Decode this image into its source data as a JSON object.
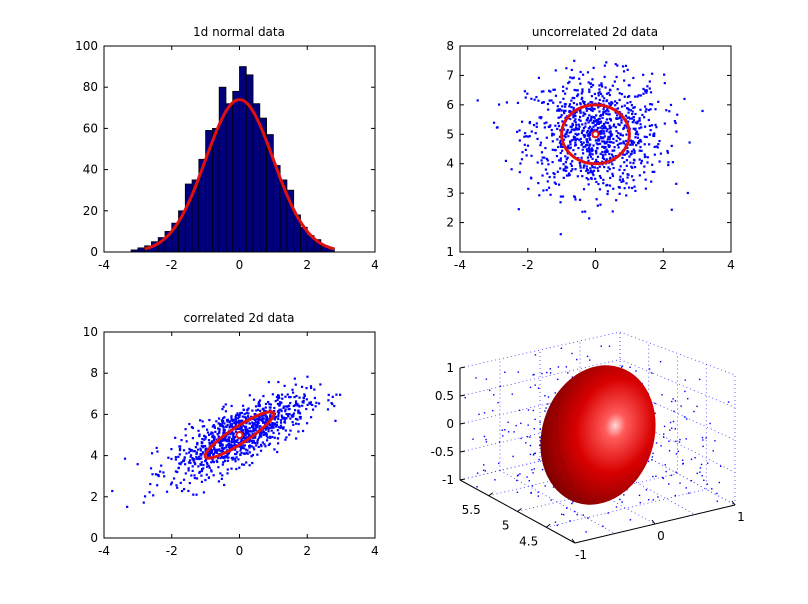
{
  "chart_data": [
    {
      "type": "bar",
      "title": "1d normal data",
      "bins_left": [
        -3.2,
        -3.0,
        -2.8,
        -2.6,
        -2.4,
        -2.2,
        -2.0,
        -1.8,
        -1.6,
        -1.4,
        -1.2,
        -1.0,
        -0.8,
        -0.6,
        -0.4,
        -0.2,
        0.0,
        0.2,
        0.4,
        0.6,
        0.8,
        1.0,
        1.2,
        1.4,
        1.6,
        1.8,
        2.0,
        2.2,
        2.4,
        2.6
      ],
      "bin_width": 0.2,
      "counts": [
        1,
        2,
        3,
        5,
        7,
        10,
        14,
        20,
        33,
        35,
        45,
        59,
        60,
        80,
        72,
        78,
        90,
        86,
        72,
        65,
        57,
        42,
        35,
        30,
        18,
        12,
        8,
        6,
        3,
        2
      ],
      "fit_curve": {
        "type": "normal",
        "mean": 0,
        "sd": 1,
        "peak": 74
      },
      "xlim": [
        -4,
        4
      ],
      "ylim": [
        0,
        100
      ],
      "xticks": [
        "-4",
        "-2",
        "0",
        "2",
        "4"
      ],
      "yticks": [
        "0",
        "20",
        "40",
        "60",
        "80",
        "100"
      ],
      "colors": {
        "bar": "#00007f",
        "edge": "#000000",
        "fit": "#e01010"
      }
    },
    {
      "type": "scatter",
      "title": "uncorrelated 2d data",
      "mean": [
        0,
        5
      ],
      "sd": [
        1,
        1
      ],
      "corr": 0,
      "n": 1000,
      "ellipse": {
        "center": [
          0,
          5
        ],
        "radius": [
          1,
          1
        ]
      },
      "xlim": [
        -4,
        4
      ],
      "ylim": [
        1,
        8
      ],
      "xticks": [
        "-4",
        "-2",
        "0",
        "2",
        "4"
      ],
      "yticks": [
        "1",
        "2",
        "3",
        "4",
        "5",
        "6",
        "7",
        "8"
      ],
      "colors": {
        "points": "#0000ff",
        "ellipse": "#e01010"
      }
    },
    {
      "type": "scatter",
      "title": "correlated 2d data",
      "mean": [
        0,
        5
      ],
      "sd": [
        1,
        1
      ],
      "corr": 0.75,
      "n": 1000,
      "ellipse": {
        "center": [
          0,
          5
        ],
        "major": 1.0,
        "minor": 0.45,
        "angle_deg": 33
      },
      "xlim": [
        -4,
        4
      ],
      "ylim": [
        0,
        10
      ],
      "xticks": [
        "-4",
        "-2",
        "0",
        "2",
        "4"
      ],
      "yticks": [
        "0",
        "2",
        "4",
        "6",
        "8",
        "10"
      ],
      "colors": {
        "points": "#0000ff",
        "ellipse": "#e01010"
      }
    },
    {
      "type": "scatter3d",
      "surface": "ellipsoid",
      "center": [
        0,
        5,
        0
      ],
      "radii": [
        1,
        0.6,
        1
      ],
      "xlim": [
        -1,
        1
      ],
      "ylim": [
        4.2,
        5.8
      ],
      "zlim": [
        -1,
        1
      ],
      "zticks": [
        "-1",
        "-0.5",
        "0",
        "0.5",
        "1"
      ],
      "yticks": [
        "4.5",
        "5",
        "5.5"
      ],
      "xticks": [
        "-1",
        "0",
        "1"
      ],
      "colors": {
        "surface": "#cc0000",
        "points": "#0000ff",
        "grid": "#3a3aff"
      }
    }
  ]
}
